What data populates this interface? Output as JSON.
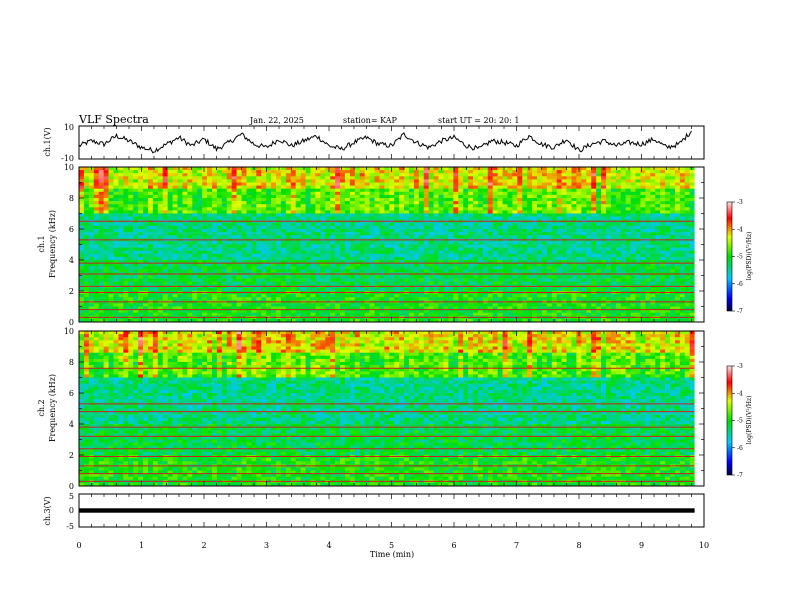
{
  "header": {
    "title": "VLF Spectra",
    "date": "Jan. 22, 2025",
    "station": "station= KAP",
    "start": "start  UT  =   20: 20: 1"
  },
  "chart_data": [
    {
      "type": "line",
      "name": "ch1-waveform",
      "ylabel": "ch.1(V)",
      "ylim": [
        -10,
        10
      ],
      "yticks": [
        "10",
        "-10"
      ],
      "xlim": [
        0,
        10
      ],
      "x": [
        0,
        0.2,
        0.4,
        0.6,
        0.8,
        1.0,
        1.2,
        1.4,
        1.6,
        1.8,
        2.0,
        2.2,
        2.4,
        2.6,
        2.8,
        3.0,
        3.2,
        3.4,
        3.6,
        3.8,
        4.0,
        4.2,
        4.4,
        4.6,
        4.8,
        5.0,
        5.2,
        5.4,
        5.6,
        5.8,
        6.0,
        6.2,
        6.4,
        6.6,
        6.8,
        7.0,
        7.2,
        7.4,
        7.6,
        7.8,
        8.0,
        8.2,
        8.4,
        8.6,
        8.8,
        9.0,
        9.2,
        9.4,
        9.6,
        9.8
      ],
      "y": [
        -2,
        1,
        -1,
        4,
        1,
        -3,
        -5,
        -1,
        3,
        -2,
        2,
        -4,
        0,
        5,
        -1,
        -3,
        2,
        -2,
        1,
        4,
        -2,
        -4,
        0,
        3,
        -1,
        -2,
        5,
        0,
        -3,
        1,
        3,
        -2,
        -4,
        1,
        0,
        -2,
        4,
        -1,
        -3,
        2,
        -5,
        -1,
        1,
        -2,
        0,
        -1,
        2,
        -3,
        -1,
        7
      ]
    },
    {
      "type": "heatmap",
      "name": "ch1-spectrogram",
      "ylabel_lines": [
        "ch.1",
        "Frequency (kHz)"
      ],
      "xlim": [
        0,
        10
      ],
      "ylim": [
        0,
        10
      ],
      "yticks": [
        "0",
        "2",
        "4",
        "6",
        "8",
        "10"
      ],
      "colorbar": {
        "ticks": [
          "-3",
          "-4",
          "-5",
          "-6",
          "-7"
        ],
        "label": "log(PSD)(V²/Hz)",
        "range": [
          -7,
          -3
        ]
      }
    },
    {
      "type": "heatmap",
      "name": "ch2-spectrogram",
      "ylabel_lines": [
        "ch.2",
        "Frequency (kHz)"
      ],
      "xlim": [
        0,
        10
      ],
      "ylim": [
        0,
        10
      ],
      "yticks": [
        "0",
        "2",
        "4",
        "6",
        "8",
        "10"
      ],
      "colorbar": {
        "ticks": [
          "-3",
          "-4",
          "-5",
          "-6",
          "-7"
        ],
        "label": "log(PSD)(V²/Hz)",
        "range": [
          -7,
          -3
        ]
      }
    },
    {
      "type": "line",
      "name": "ch3-waveform",
      "ylabel": "ch.3(V)",
      "ylim": [
        -5,
        5
      ],
      "yticks": [
        "5",
        "0",
        "-5"
      ],
      "xlim": [
        0,
        9.85
      ],
      "y_level": 0,
      "xlabel": "Time  (min)",
      "xticks": [
        "0",
        "1",
        "2",
        "3",
        "4",
        "5",
        "6",
        "7",
        "8",
        "9",
        "10"
      ]
    }
  ]
}
